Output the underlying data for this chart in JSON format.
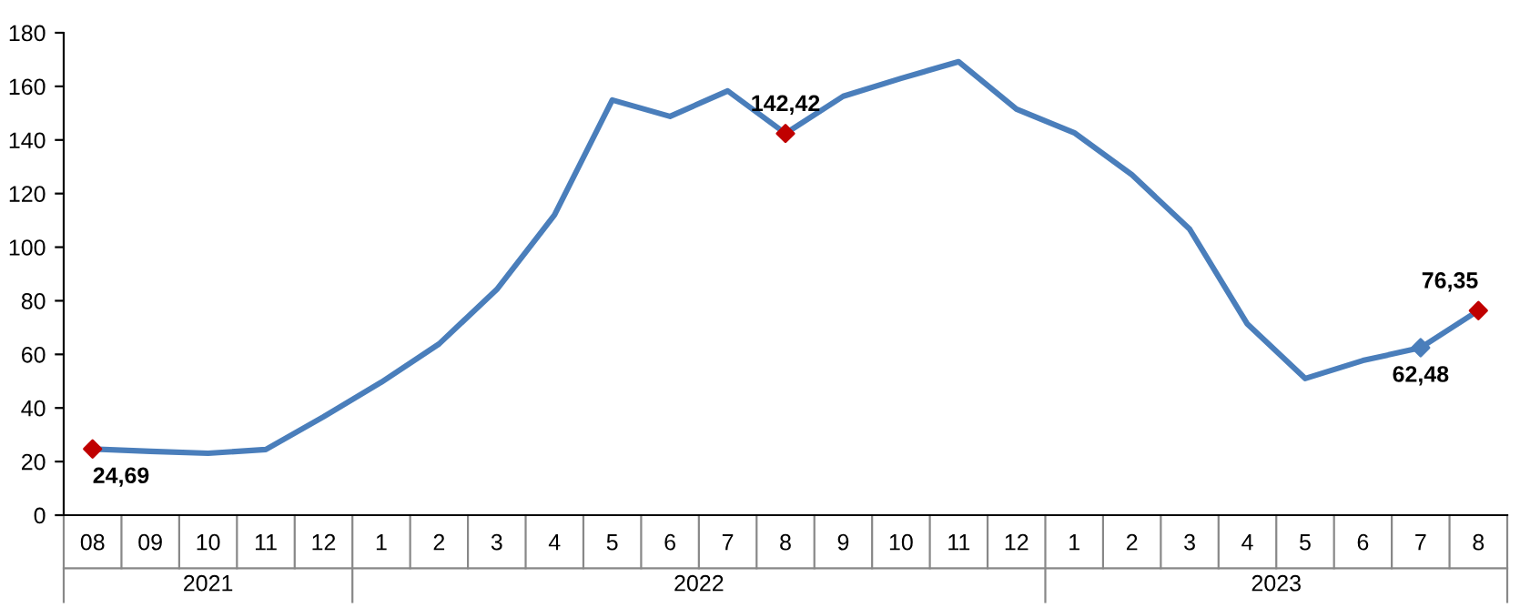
{
  "chart_data": {
    "type": "line",
    "categories": [
      "08",
      "09",
      "10",
      "11",
      "12",
      "1",
      "2",
      "3",
      "4",
      "5",
      "6",
      "7",
      "8",
      "9",
      "10",
      "11",
      "12",
      "1",
      "2",
      "3",
      "4",
      "5",
      "6",
      "7",
      "8"
    ],
    "annotations": [
      "2021",
      "2022",
      "2023"
    ],
    "series": [
      {
        "color": "#4a7ebb",
        "values": [
          24.69,
          23.8,
          23.1,
          24.5,
          36.7,
          49.6,
          63.9,
          84.2,
          112,
          154.9,
          148.8,
          158.3,
          142.42,
          156.3,
          163,
          169.2,
          151.5,
          142.7,
          127,
          106.7,
          71.3,
          51,
          57.7,
          62.48,
          76.35
        ]
      },
      {
        "type": "scatter",
        "marker": "diamond",
        "colors": [
          "#c00000",
          null,
          null,
          null,
          null,
          null,
          null,
          null,
          null,
          null,
          null,
          null,
          "#c00000",
          null,
          null,
          null,
          null,
          null,
          null,
          null,
          null,
          null,
          null,
          "#4a7ebb",
          "#c00000"
        ],
        "values": [
          24.69,
          null,
          null,
          null,
          null,
          null,
          null,
          null,
          null,
          null,
          null,
          null,
          142.42,
          null,
          null,
          null,
          null,
          null,
          null,
          null,
          null,
          null,
          null,
          62.48,
          76.35
        ],
        "value_labels": [
          "24,69",
          null,
          null,
          null,
          null,
          null,
          null,
          null,
          null,
          null,
          null,
          null,
          "142,42",
          null,
          null,
          null,
          null,
          null,
          null,
          null,
          null,
          null,
          null,
          "62,48",
          "76,35"
        ]
      }
    ],
    "ylim": [
      0,
      180
    ],
    "yticks": [
      0,
      20,
      40,
      60,
      80,
      100,
      120,
      140,
      160,
      180
    ],
    "grid": false,
    "legend": false
  }
}
